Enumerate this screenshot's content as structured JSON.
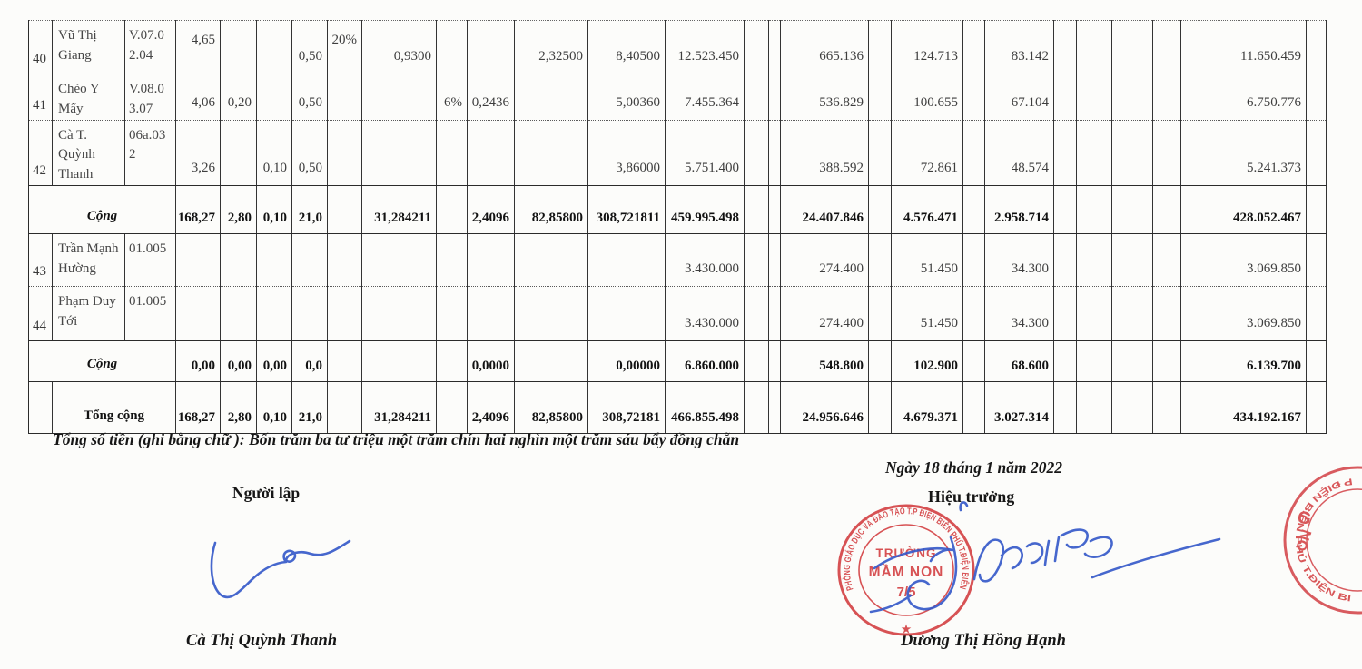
{
  "colors": {
    "stamp_red": "#d23b3e",
    "signature_blue": "#3357c9",
    "ink": "#3e3e3e",
    "bold_ink": "#121212",
    "table_line": "#2b2b2b"
  },
  "table": {
    "rows": [
      {
        "type": "data",
        "stt": "40",
        "name": "Vũ Thị Giang",
        "code": "V.07.0 2.04",
        "divider": "dotted",
        "tops": [
          4,
          8
        ],
        "cells": {
          "4": "4,65",
          "7": "0,50",
          "8": "20%",
          "9": "0,9300",
          "12": "2,32500",
          "13": "8,40500",
          "14": "12.523.450",
          "17": "665.136",
          "19": "124.713",
          "21": "83.142",
          "27": "11.650.459"
        }
      },
      {
        "type": "data",
        "stt": "41",
        "name": "Chẻo Y Mẩy",
        "code": "V.08.0 3.07",
        "divider": "dotted",
        "cells": {
          "4": "4,06",
          "5": "0,20",
          "7": "0,50",
          "10": "6%",
          "11": "0,2436",
          "13": "5,00360",
          "14": "7.455.364",
          "17": "536.829",
          "19": "100.655",
          "21": "67.104",
          "27": "6.750.776"
        }
      },
      {
        "type": "data",
        "stt": "42",
        "name": "Cà T. Quỳnh Thanh",
        "code": "06a.03 2",
        "divider": "solid",
        "cells": {
          "4": "3,26",
          "6": "0,10",
          "7": "0,50",
          "13": "3,86000",
          "14": "5.751.400",
          "17": "388.592",
          "19": "72.861",
          "21": "48.574",
          "27": "5.241.373"
        }
      },
      {
        "type": "sum",
        "label": "Cộng",
        "divider": "solid",
        "cells": {
          "4": "168,27",
          "5": "2,80",
          "6": "0,10",
          "7": "21,0",
          "9": "31,284211",
          "11": "2,4096",
          "12": "82,85800",
          "13": "308,721811",
          "14": "459.995.498",
          "17": "24.407.846",
          "19": "4.576.471",
          "21": "2.958.714",
          "27": "428.052.467"
        }
      },
      {
        "type": "data",
        "stt": "43",
        "name": "Trần Mạnh Hường",
        "code": "01.005",
        "divider": "dotted",
        "cells": {
          "14": "3.430.000",
          "17": "274.400",
          "19": "51.450",
          "21": "34.300",
          "27": "3.069.850"
        }
      },
      {
        "type": "data",
        "stt": "44",
        "name": "Phạm Duy Tới",
        "code": "01.005",
        "divider": "solid",
        "cells": {
          "14": "3.430.000",
          "17": "274.400",
          "19": "51.450",
          "21": "34.300",
          "27": "3.069.850"
        }
      },
      {
        "type": "sum",
        "label": "Cộng",
        "divider": "solid",
        "cells": {
          "4": "0,00",
          "5": "0,00",
          "6": "0,00",
          "7": "0,0",
          "11": "0,0000",
          "13": "0,00000",
          "14": "6.860.000",
          "17": "548.800",
          "19": "102.900",
          "21": "68.600",
          "27": "6.139.700"
        }
      },
      {
        "type": "total",
        "label": "Tổng cộng",
        "divider": "solid",
        "cells": {
          "4": "168,27",
          "5": "2,80",
          "6": "0,10",
          "7": "21,0",
          "9": "31,284211",
          "11": "2,4096",
          "12": "82,85800",
          "13": "308,72181",
          "14": "466.855.498",
          "17": "24.956.646",
          "19": "4.679.371",
          "21": "3.027.314",
          "27": "434.192.167"
        }
      }
    ]
  },
  "footer": {
    "amount_in_words": "Tổng số tiền (ghi bằng chữ ): Bốn trăm ba tư triệu một trăm chín hai nghìn một trăm sáu bẩy đồng chẵn",
    "date_line": "Ngày 18 tháng 1 năm 2022",
    "preparer_role": "Người lập",
    "preparer_name": "Cà Thị Quỳnh Thanh",
    "principal_role": "Hiệu trưởng",
    "principal_name": "Dương Thị Hồng Hạnh"
  },
  "stamp": {
    "arc_text": "PHÒNG GIÁO DỤC VÀ ĐÀO TẠO T.P ĐIỆN BIÊN PHỦ T.ĐIỆN BIÊN",
    "center_line1": "TRƯỜNG",
    "center_line2": "MẦM NON",
    "center_line3": "7/5",
    "star": "★"
  },
  "edge_stamp": {
    "arc_text": "P ĐIỆN BIÊN PHỦ T.ĐIỆN BI",
    "letter1": "G",
    "letter2": "ON"
  }
}
